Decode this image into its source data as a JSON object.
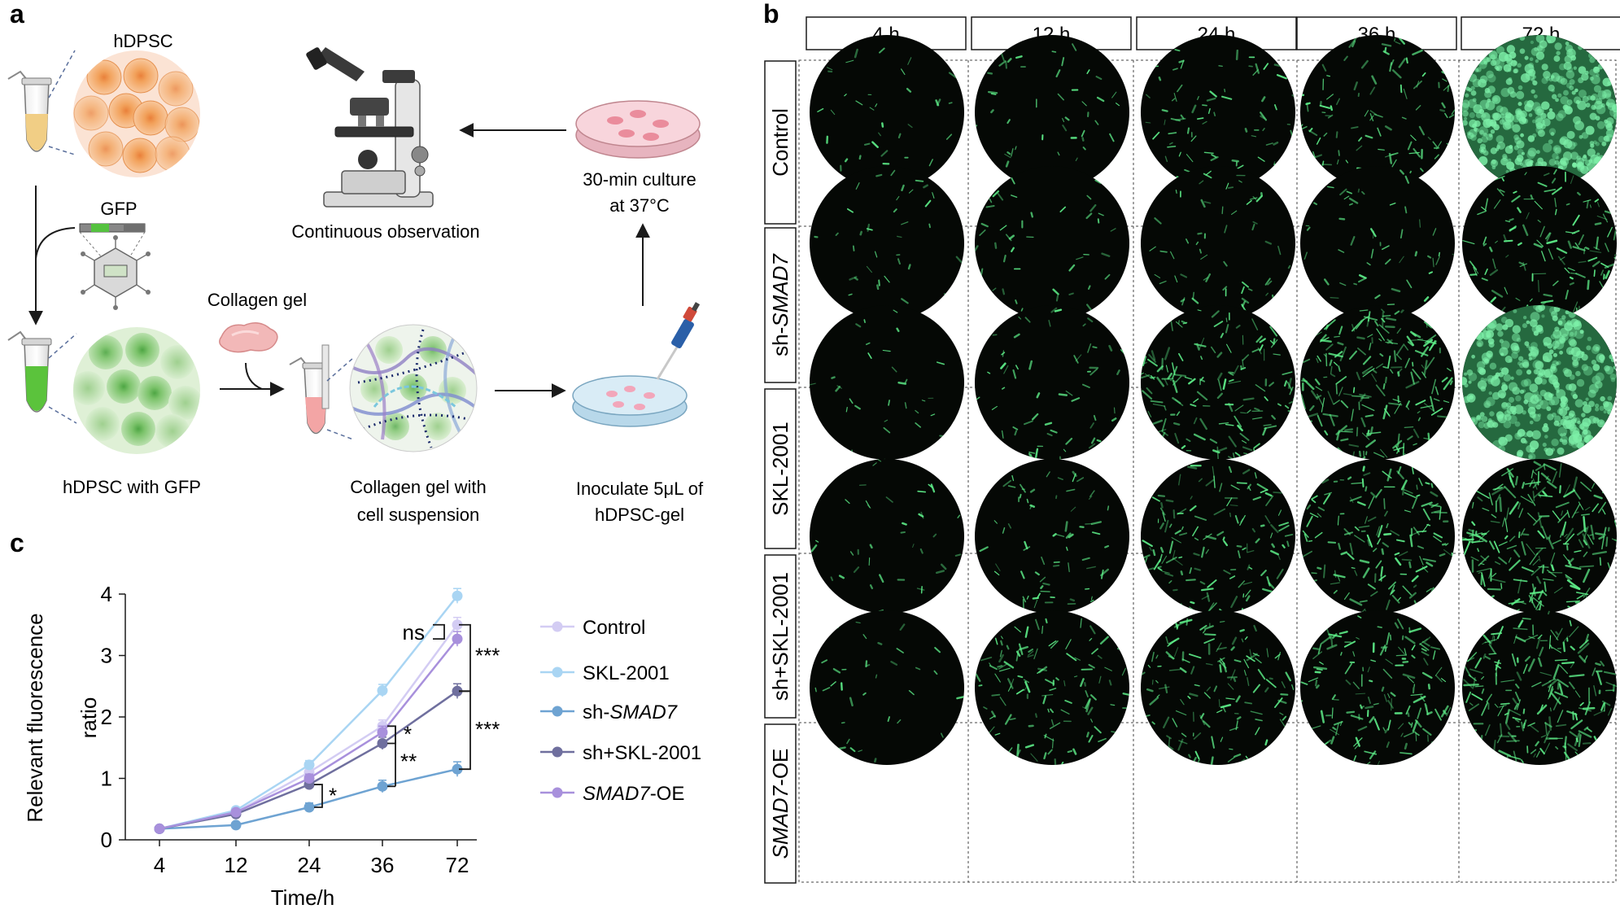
{
  "panels": {
    "a": "a",
    "b": "b",
    "c": "c"
  },
  "panel_a": {
    "labels": {
      "hdpsc": "hDPSC",
      "gfp": "GFP",
      "hdpsc_gfp": "hDPSC with GFP",
      "collagen_gel": "Collagen gel",
      "collagen_mix_l1": "Collagen gel with",
      "collagen_mix_l2": "cell suspension",
      "inoculate_l1": "Inoculate 5μL of",
      "inoculate_l2": "hDPSC-gel",
      "culture_l1": "30-min culture",
      "culture_l2": "at 37°C",
      "observation": "Continuous observation"
    },
    "colors": {
      "orange_cell": "#f2a25c",
      "orange_bg": "#fbe3d4",
      "green_cell": "#7cc36b",
      "green_bg": "#dff0d6",
      "dish_pink": "#f3b9c3",
      "dish_blue": "#cfe6f2"
    }
  },
  "panel_b": {
    "columns": [
      "4 h",
      "12 h",
      "24 h",
      "36 h",
      "72 h"
    ],
    "rows": [
      {
        "pre": "Control",
        "em": "",
        "post": ""
      },
      {
        "pre": "sh-",
        "em": "SMAD7",
        "post": ""
      },
      {
        "pre": "SKL-2001",
        "em": "",
        "post": ""
      },
      {
        "pre": "sh+SKL-2001",
        "em": "",
        "post": ""
      },
      {
        "pre": "",
        "em": "SMAD7",
        "post": "-OE"
      }
    ],
    "density": [
      [
        0.05,
        0.08,
        0.18,
        0.25,
        0.95
      ],
      [
        0.05,
        0.07,
        0.12,
        0.1,
        0.35
      ],
      [
        0.03,
        0.12,
        0.4,
        0.55,
        0.95
      ],
      [
        0.05,
        0.15,
        0.35,
        0.4,
        0.6
      ],
      [
        0.04,
        0.3,
        0.35,
        0.4,
        0.55
      ]
    ],
    "fluor_color": "#5ff08a"
  },
  "chart_data": {
    "type": "line",
    "xlabel": "Time/h",
    "ylabel_l1": "Relevant fluorescence",
    "ylabel_l2": "ratio",
    "categories": [
      "4",
      "12",
      "24",
      "36",
      "72"
    ],
    "yticks": [
      "0",
      "1",
      "2",
      "3",
      "4"
    ],
    "ylim": [
      0,
      4
    ],
    "series": [
      {
        "pre": "Control",
        "em": "",
        "post": "",
        "color": "#d3ccf3",
        "values": [
          0.18,
          0.45,
          1.1,
          1.85,
          3.5
        ]
      },
      {
        "pre": "SKL-2001",
        "em": "",
        "post": "",
        "color": "#a9d5f3",
        "values": [
          0.18,
          0.48,
          1.22,
          2.43,
          3.97
        ]
      },
      {
        "pre": "sh-",
        "em": "SMAD7",
        "post": "",
        "color": "#6ea3d2",
        "values": [
          0.18,
          0.24,
          0.53,
          0.87,
          1.15
        ]
      },
      {
        "pre": "sh+SKL-2001",
        "em": "",
        "post": "",
        "color": "#6f6f9e",
        "values": [
          0.18,
          0.42,
          0.9,
          1.57,
          2.42
        ]
      },
      {
        "pre": "",
        "em": "SMAD7",
        "post": "-OE",
        "color": "#a890dc",
        "values": [
          0.18,
          0.45,
          1.0,
          1.75,
          3.27
        ]
      }
    ],
    "error": [
      0.02,
      0.03,
      0.07,
      0.1,
      0.12
    ],
    "annotations": [
      "ns",
      "***",
      "***",
      "*",
      "**",
      "*"
    ],
    "legend": "right"
  }
}
